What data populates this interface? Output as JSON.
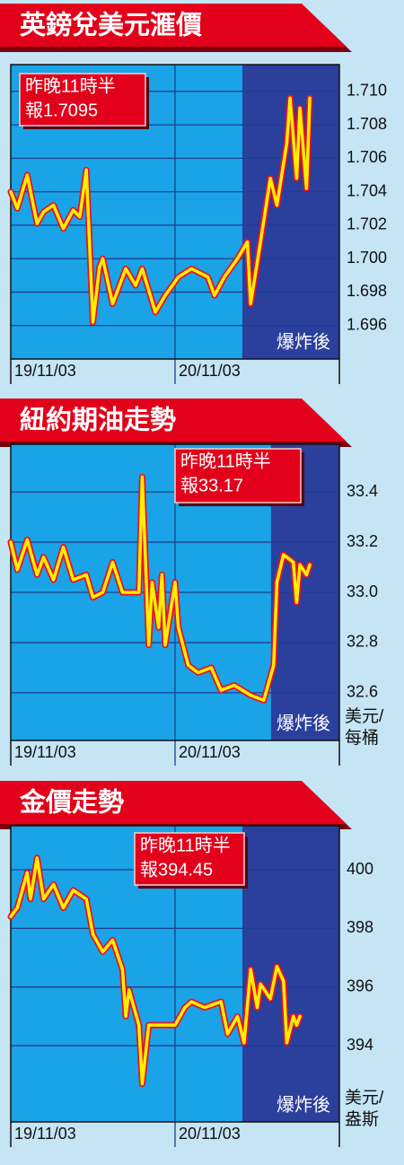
{
  "chart_data": [
    {
      "type": "line",
      "title": "英鎊兌美元滙價",
      "annotation": [
        "昨晚11時半",
        "報1.7095"
      ],
      "highlight_label": "爆炸後",
      "highlight_from": 70.5,
      "color": "#ffee00",
      "grid": true,
      "x": [
        0,
        2,
        5,
        8,
        10,
        13,
        16,
        19,
        21,
        23,
        25,
        27,
        28,
        31,
        35,
        38,
        40,
        44,
        47,
        51,
        55,
        60,
        62,
        65,
        69,
        72,
        73,
        76,
        79,
        81,
        84,
        85,
        87,
        88,
        90,
        91
      ],
      "values": [
        1.704,
        1.703,
        1.705,
        1.7021,
        1.7028,
        1.7032,
        1.7018,
        1.7029,
        1.7025,
        1.7053,
        1.6962,
        1.6995,
        1.7,
        1.6973,
        1.6994,
        1.6984,
        1.6994,
        1.6968,
        1.6978,
        1.6989,
        1.6994,
        1.6989,
        1.6978,
        1.6989,
        1.7,
        1.701,
        1.6973,
        1.701,
        1.7048,
        1.7032,
        1.7069,
        1.7096,
        1.7048,
        1.709,
        1.7042,
        1.7096
      ],
      "xlim": [
        0,
        100
      ],
      "xticks": [
        {
          "value": 0,
          "label": "19/11/03"
        },
        {
          "value": 50,
          "label": "20/11/03"
        }
      ],
      "ylim": [
        1.694,
        1.7116
      ],
      "yticks": [
        {
          "value": 1.71,
          "label": "1.710"
        },
        1.708,
        1.706,
        1.704,
        1.702,
        {
          "value": 1.7,
          "label": "1.700"
        },
        1.698,
        1.696
      ]
    },
    {
      "type": "line",
      "title": "紐約期油走勢",
      "annotation": [
        "昨晚11時半",
        "報33.17"
      ],
      "highlight_label": "爆炸後",
      "highlight_from": 79.2,
      "y_unit": [
        "美元/",
        "每桶"
      ],
      "color": "#ffee00",
      "grid": true,
      "x": [
        0,
        2,
        5,
        8,
        10,
        13,
        16,
        19,
        23,
        25,
        28,
        31,
        34,
        39,
        40,
        42,
        43,
        45,
        46,
        47,
        50,
        51,
        54,
        57,
        61,
        64,
        68,
        73,
        77,
        80,
        81,
        83,
        86,
        87,
        88,
        90,
        91
      ],
      "values": [
        33.2,
        33.09,
        33.21,
        33.07,
        33.14,
        33.05,
        33.18,
        33.05,
        33.07,
        32.98,
        33.0,
        33.12,
        33.0,
        33.0,
        33.46,
        32.79,
        33.04,
        32.86,
        33.07,
        32.79,
        33.04,
        32.86,
        32.71,
        32.68,
        32.7,
        32.61,
        32.63,
        32.59,
        32.57,
        32.71,
        33.04,
        33.15,
        33.12,
        32.96,
        33.11,
        33.07,
        33.11
      ],
      "xlim": [
        0,
        100
      ],
      "xticks": [
        {
          "value": 0,
          "label": "19/11/03"
        },
        {
          "value": 50,
          "label": "20/11/03"
        }
      ],
      "ylim": [
        32.41,
        33.59
      ],
      "yticks": [
        33.4,
        33.2,
        {
          "value": 33.0,
          "label": "33.0"
        },
        32.8,
        32.6
      ]
    },
    {
      "type": "line",
      "title": "金價走勢",
      "annotation": [
        "昨晚11時半",
        "報394.45"
      ],
      "highlight_label": "爆炸後",
      "highlight_from": 70.5,
      "y_unit": [
        "美元/",
        "盎斯"
      ],
      "color": "#ffee00",
      "grid": true,
      "x": [
        0,
        2,
        5,
        6,
        8,
        10,
        13,
        16,
        19,
        23,
        25,
        28,
        31,
        34,
        35,
        36,
        39,
        40,
        42,
        45,
        50,
        53,
        55,
        59,
        64,
        66,
        69,
        71,
        73,
        75,
        76,
        79,
        81,
        83,
        84,
        86,
        87,
        88
      ],
      "values": [
        398.4,
        398.7,
        399.9,
        399.0,
        400.4,
        399.0,
        399.5,
        398.7,
        399.3,
        399.0,
        397.8,
        397.2,
        397.6,
        396.6,
        395.0,
        395.9,
        394.7,
        392.7,
        394.7,
        394.7,
        394.7,
        395.3,
        395.5,
        395.3,
        395.5,
        394.4,
        395.0,
        394.1,
        396.6,
        395.3,
        396.1,
        395.6,
        396.7,
        396.2,
        394.1,
        395.0,
        394.7,
        395.0
      ],
      "xlim": [
        0,
        100
      ],
      "xticks": [
        {
          "value": 0,
          "label": "19/11/03"
        },
        {
          "value": 50,
          "label": "20/11/03"
        }
      ],
      "ylim": [
        391.4,
        401.5
      ],
      "yticks": [
        400,
        398,
        396,
        394
      ]
    }
  ]
}
